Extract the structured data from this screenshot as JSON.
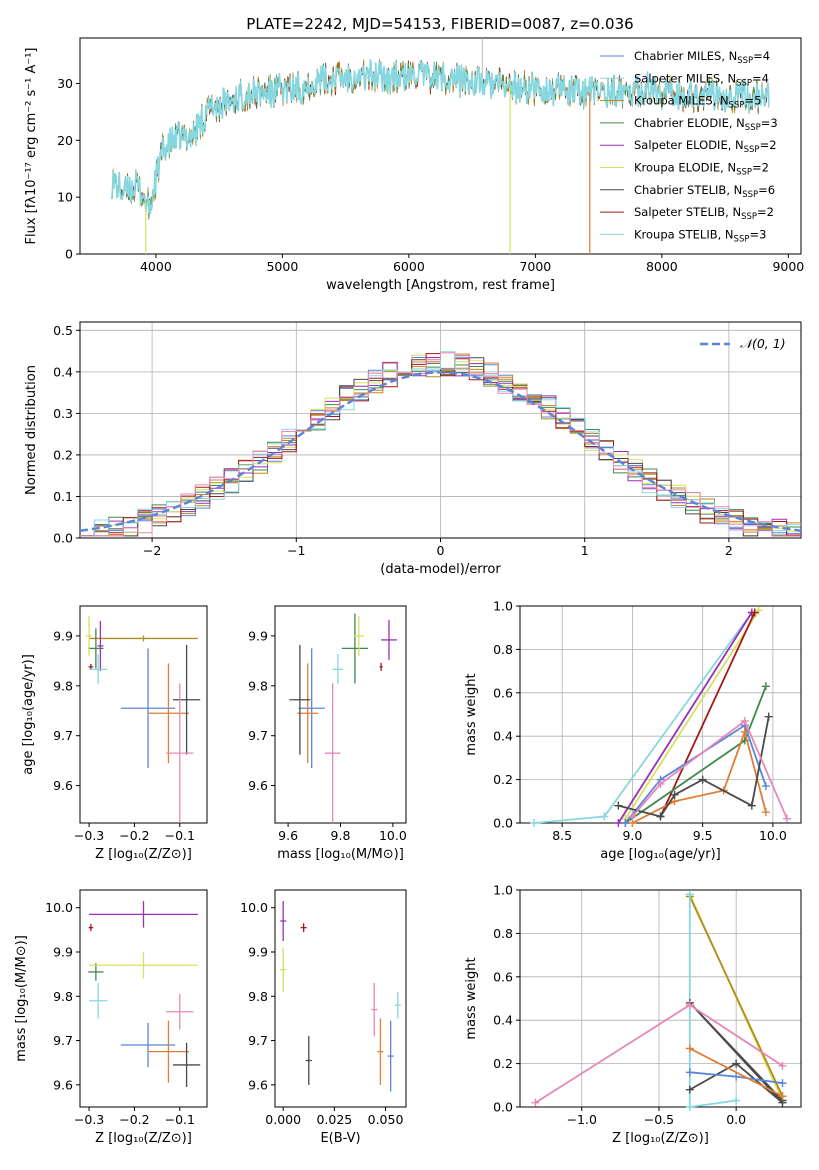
{
  "title": "PLATE=2242, MJD=54153, FIBERID=0087, z=0.036",
  "colors": {
    "Chabrier MILES": "#5b86d8",
    "Salpeter MILES": "#e07d36",
    "Kroupa MILES": "#b58a1e",
    "Chabrier ELODIE": "#3f8a4a",
    "Salpeter ELODIE": "#9b2fb5",
    "Kroupa ELODIE": "#d7e060",
    "Chabrier STELIB": "#4a4a4a",
    "Salpeter STELIB": "#a11a1a",
    "Kroupa STELIB": "#86d7e0",
    "pink": "#e887b7",
    "gauss": "#5b86d8"
  },
  "chart_data": [
    {
      "id": "spectrum",
      "type": "line",
      "xlabel": "wavelength [Angstrom, rest frame]",
      "ylabel": "Flux [fλ10⁻¹⁷ erg cm⁻² s⁻¹ A⁻¹]",
      "xlim": [
        3400,
        9100
      ],
      "ylim": [
        0,
        38
      ],
      "xticks": [
        4000,
        5000,
        6000,
        7000,
        8000,
        9000
      ],
      "yticks": [
        0,
        10,
        20,
        30
      ],
      "grid": false,
      "legend_position": "top-right",
      "legend": [
        {
          "label": "Chabrier MILES, N",
          "sub": "SSP",
          "val": "=4",
          "color_key": "Chabrier MILES"
        },
        {
          "label": "Salpeter MILES, N",
          "sub": "SSP",
          "val": "=4",
          "color_key": "Kroupa STELIB"
        },
        {
          "label": "Kroupa MILES, N",
          "sub": "SSP",
          "val": "=5",
          "color_key": "Kroupa MILES"
        },
        {
          "label": "Chabrier ELODIE, N",
          "sub": "SSP",
          "val": "=3",
          "color_key": "Chabrier ELODIE"
        },
        {
          "label": "Salpeter ELODIE, N",
          "sub": "SSP",
          "val": "=2",
          "color_key": "Salpeter ELODIE"
        },
        {
          "label": "Kroupa ELODIE, N",
          "sub": "SSP",
          "val": "=2",
          "color_key": "Kroupa ELODIE"
        },
        {
          "label": "Chabrier STELIB, N",
          "sub": "SSP",
          "val": "=6",
          "color_key": "Chabrier STELIB"
        },
        {
          "label": "Salpeter STELIB, N",
          "sub": "SSP",
          "val": "=2",
          "color_key": "Salpeter STELIB"
        },
        {
          "label": "Kroupa STELIB, N",
          "sub": "SSP",
          "val": "=3",
          "color_key": "Kroupa STELIB"
        }
      ],
      "continuum": [
        [
          3650,
          13
        ],
        [
          3750,
          11
        ],
        [
          3850,
          12
        ],
        [
          3950,
          8
        ],
        [
          4050,
          18
        ],
        [
          4150,
          20
        ],
        [
          4300,
          21
        ],
        [
          4400,
          25
        ],
        [
          4500,
          26
        ],
        [
          4700,
          28
        ],
        [
          4900,
          28.5
        ],
        [
          5100,
          29
        ],
        [
          5300,
          30.5
        ],
        [
          5600,
          31.5
        ],
        [
          5900,
          31
        ],
        [
          6100,
          31.5
        ],
        [
          6300,
          31
        ],
        [
          6600,
          30
        ],
        [
          6800,
          29.5
        ],
        [
          7000,
          29
        ],
        [
          7300,
          28.5
        ],
        [
          7600,
          28.5
        ],
        [
          7900,
          29
        ],
        [
          8200,
          28
        ],
        [
          8500,
          28
        ],
        [
          8800,
          27.5
        ]
      ],
      "dropouts": [
        {
          "x": 3920,
          "color_key": "Kroupa ELODIE"
        },
        {
          "x": 6800,
          "color_key": "Kroupa ELODIE"
        },
        {
          "x": 7430,
          "color_key": "Salpeter MILES"
        }
      ]
    },
    {
      "id": "residuals",
      "type": "histogram",
      "xlabel": "(data-model)/error",
      "ylabel": "Normed distribution",
      "xlim": [
        -2.5,
        2.5
      ],
      "ylim": [
        0,
        0.52
      ],
      "xticks": [
        -2,
        -1,
        0,
        1,
        2
      ],
      "yticks": [
        0.0,
        0.1,
        0.2,
        0.3,
        0.4,
        0.5
      ],
      "grid": true,
      "legend_position": "top-right",
      "legend": [
        {
          "label": "𝒩(0, 1)",
          "color_key": "gauss"
        }
      ],
      "bin_width": 0.1
    },
    {
      "id": "age_vs_Z",
      "type": "errorbar",
      "xlabel": "Z [log₁₀(Z/Z⊙)]",
      "ylabel": "age  [log₁₀(age/yr)]",
      "xlim": [
        -0.32,
        -0.04
      ],
      "ylim": [
        9.525,
        9.96
      ],
      "xticks": [
        -0.3,
        -0.2,
        -0.1
      ],
      "yticks": [
        9.6,
        9.7,
        9.8,
        9.9
      ],
      "points": [
        {
          "c": "Chabrier MILES",
          "x": -0.17,
          "xe": 0.06,
          "y": 9.755,
          "ye": 0.12
        },
        {
          "c": "Salpeter MILES",
          "x": -0.125,
          "xe": 0.045,
          "y": 9.745,
          "ye": 0.1
        },
        {
          "c": "Kroupa MILES",
          "x": -0.18,
          "xe": 0.12,
          "y": 9.895,
          "ye": 0.0
        },
        {
          "c": "Chabrier ELODIE",
          "x": -0.285,
          "xe": 0.017,
          "y": 9.875,
          "ye": 0.04
        },
        {
          "c": "Salpeter ELODIE",
          "x": -0.275,
          "xe": 0.0,
          "y": 9.88,
          "ye": 0.05
        },
        {
          "c": "Kroupa ELODIE",
          "x": -0.3,
          "xe": 0.0,
          "y": 9.9,
          "ye": 0.04
        },
        {
          "c": "Chabrier STELIB",
          "x": -0.085,
          "xe": 0.03,
          "y": 9.772,
          "ye": 0.11
        },
        {
          "c": "Salpeter STELIB",
          "x": -0.296,
          "xe": 0.005,
          "y": 9.838,
          "ye": 0.0
        },
        {
          "c": "Kroupa STELIB",
          "x": -0.28,
          "xe": 0.02,
          "y": 9.833,
          "ye": 0.03
        },
        {
          "c": "pink",
          "x": -0.1,
          "xe": 0.03,
          "y": 9.665,
          "ye": 0.14
        }
      ]
    },
    {
      "id": "age_vs_mass",
      "type": "errorbar",
      "xlabel": "mass [log₁₀(M/M⊙)]",
      "ylabel": "",
      "xlim": [
        9.55,
        10.05
      ],
      "ylim": [
        9.525,
        9.96
      ],
      "xticks": [
        9.6,
        9.8,
        10.0
      ],
      "yticks": [
        9.6,
        9.7,
        9.8,
        9.9
      ],
      "points": [
        {
          "c": "Chabrier MILES",
          "x": 9.69,
          "xe": 0.05,
          "y": 9.755,
          "ye": 0.12
        },
        {
          "c": "Salpeter MILES",
          "x": 9.675,
          "xe": 0.04,
          "y": 9.745,
          "ye": 0.1
        },
        {
          "c": "Chabrier ELODIE",
          "x": 9.855,
          "xe": 0.05,
          "y": 9.875,
          "ye": 0.07
        },
        {
          "c": "Salpeter ELODIE",
          "x": 9.985,
          "xe": 0.03,
          "y": 9.892,
          "ye": 0.04
        },
        {
          "c": "Kroupa ELODIE",
          "x": 9.87,
          "xe": 0.02,
          "y": 9.9,
          "ye": 0.04
        },
        {
          "c": "Chabrier STELIB",
          "x": 9.645,
          "xe": 0.04,
          "y": 9.772,
          "ye": 0.11
        },
        {
          "c": "Salpeter STELIB",
          "x": 9.955,
          "xe": 0.006,
          "y": 9.838,
          "ye": 0.008
        },
        {
          "c": "Kroupa STELIB",
          "x": 9.79,
          "xe": 0.02,
          "y": 9.833,
          "ye": 0.03
        },
        {
          "c": "pink",
          "x": 9.77,
          "xe": 0.03,
          "y": 9.665,
          "ye": 0.14
        }
      ]
    },
    {
      "id": "massweight_vs_age",
      "type": "line",
      "xlabel": "age  [log₁₀(age/yr)]",
      "ylabel": "mass weight",
      "xlim": [
        8.2,
        10.2
      ],
      "ylim": [
        0,
        1.0
      ],
      "xticks": [
        8.5,
        9.0,
        9.5,
        10.0
      ],
      "yticks": [
        0.0,
        0.2,
        0.4,
        0.6,
        0.8,
        1.0
      ],
      "grid": true,
      "series": [
        {
          "c": "Kroupa STELIB",
          "x": [
            8.3,
            8.8,
            9.85
          ],
          "y": [
            0.0,
            0.03,
            0.97
          ]
        },
        {
          "c": "Kroupa ELODIE",
          "x": [
            8.95,
            9.9
          ],
          "y": [
            0.02,
            0.98
          ]
        },
        {
          "c": "Salpeter ELODIE",
          "x": [
            8.9,
            9.85
          ],
          "y": [
            0.0,
            0.97
          ]
        },
        {
          "c": "Salpeter STELIB",
          "x": [
            9.2,
            9.87
          ],
          "y": [
            0.03,
            0.97
          ]
        },
        {
          "c": "Chabrier ELODIE",
          "x": [
            8.95,
            9.8,
            9.95
          ],
          "y": [
            0.0,
            0.38,
            0.63
          ]
        },
        {
          "c": "Chabrier MILES",
          "x": [
            8.95,
            9.2,
            9.8,
            9.95
          ],
          "y": [
            0.0,
            0.2,
            0.45,
            0.17
          ]
        },
        {
          "c": "Salpeter MILES",
          "x": [
            9.0,
            9.3,
            9.65,
            9.8,
            9.95
          ],
          "y": [
            0.0,
            0.1,
            0.15,
            0.42,
            0.05
          ]
        },
        {
          "c": "Chabrier STELIB",
          "x": [
            8.9,
            9.2,
            9.3,
            9.5,
            9.85,
            9.97
          ],
          "y": [
            0.08,
            0.03,
            0.13,
            0.2,
            0.08,
            0.49
          ]
        },
        {
          "c": "pink",
          "x": [
            9.0,
            9.2,
            9.8,
            10.1
          ],
          "y": [
            0.03,
            0.18,
            0.47,
            0.02
          ]
        }
      ]
    },
    {
      "id": "mass_vs_Z",
      "type": "errorbar",
      "xlabel": "Z [log₁₀(Z/Z⊙)]",
      "ylabel": "mass [log₁₀(M/M⊙)]",
      "xlim": [
        -0.32,
        -0.04
      ],
      "ylim": [
        9.55,
        10.04
      ],
      "xticks": [
        -0.3,
        -0.2,
        -0.1
      ],
      "yticks": [
        9.6,
        9.7,
        9.8,
        9.9,
        10.0
      ],
      "points": [
        {
          "c": "Chabrier MILES",
          "x": -0.17,
          "xe": 0.06,
          "y": 9.69,
          "ye": 0.05
        },
        {
          "c": "Salpeter MILES",
          "x": -0.125,
          "xe": 0.045,
          "y": 9.675,
          "ye": 0.07
        },
        {
          "c": "Chabrier ELODIE",
          "x": -0.285,
          "xe": 0.017,
          "y": 9.855,
          "ye": 0.02
        },
        {
          "c": "Salpeter ELODIE",
          "x": -0.18,
          "xe": 0.12,
          "y": 9.985,
          "ye": 0.03
        },
        {
          "c": "Kroupa ELODIE",
          "x": -0.18,
          "xe": 0.12,
          "y": 9.87,
          "ye": 0.03
        },
        {
          "c": "Chabrier STELIB",
          "x": -0.085,
          "xe": 0.03,
          "y": 9.645,
          "ye": 0.05
        },
        {
          "c": "Salpeter STELIB",
          "x": -0.296,
          "xe": 0.005,
          "y": 9.955,
          "ye": 0.008
        },
        {
          "c": "Kroupa STELIB",
          "x": -0.28,
          "xe": 0.02,
          "y": 9.79,
          "ye": 0.04
        },
        {
          "c": "pink",
          "x": -0.1,
          "xe": 0.03,
          "y": 9.765,
          "ye": 0.04
        }
      ]
    },
    {
      "id": "mass_vs_ebv",
      "type": "errorbar",
      "xlabel": "E(B-V)",
      "ylabel": "",
      "xlim": [
        -0.004,
        0.06
      ],
      "ylim": [
        9.55,
        10.04
      ],
      "xticks": [
        0.0,
        0.025,
        0.05
      ],
      "xticklabels": [
        "0.000",
        "0.025",
        "0.050"
      ],
      "yticks": [
        9.6,
        9.7,
        9.8,
        9.9,
        10.0
      ],
      "points": [
        {
          "c": "Salpeter ELODIE",
          "x": 0.0,
          "xe": 0.0,
          "y": 9.97,
          "ye": 0.045
        },
        {
          "c": "Kroupa ELODIE",
          "x": 0.0,
          "xe": 0.0,
          "y": 9.86,
          "ye": 0.05
        },
        {
          "c": "Salpeter STELIB",
          "x": 0.01,
          "xe": 0.0,
          "y": 9.955,
          "ye": 0.01
        },
        {
          "c": "Chabrier STELIB",
          "x": 0.0125,
          "xe": 0.0,
          "y": 9.655,
          "ye": 0.055
        },
        {
          "c": "pink",
          "x": 0.0445,
          "xe": 0.0,
          "y": 9.77,
          "ye": 0.06
        },
        {
          "c": "Salpeter MILES",
          "x": 0.0475,
          "xe": 0.0,
          "y": 9.675,
          "ye": 0.075
        },
        {
          "c": "Chabrier MILES",
          "x": 0.0525,
          "xe": 0.0,
          "y": 9.665,
          "ye": 0.08
        },
        {
          "c": "Kroupa STELIB",
          "x": 0.056,
          "xe": 0.0,
          "y": 9.78,
          "ye": 0.03
        }
      ]
    },
    {
      "id": "massweight_vs_Z",
      "type": "line",
      "xlabel": "Z [log₁₀(Z/Z⊙)]",
      "ylabel": "mass weight",
      "xlim": [
        -1.4,
        0.42
      ],
      "ylim": [
        0,
        1.0
      ],
      "xticks": [
        -1.0,
        -0.5,
        0.0
      ],
      "yticks": [
        0.0,
        0.2,
        0.4,
        0.6,
        0.8,
        1.0
      ],
      "grid": true,
      "series": [
        {
          "c": "Kroupa ELODIE",
          "x": [
            -0.3,
            0.3
          ],
          "y": [
            0.98,
            0.03
          ]
        },
        {
          "c": "Kroupa MILES",
          "x": [
            -0.3,
            0.3
          ],
          "y": [
            0.97,
            0.05
          ]
        },
        {
          "c": "Kroupa STELIB",
          "x": [
            -0.3,
            -0.3,
            0.0
          ],
          "y": [
            0.98,
            0.0,
            0.03
          ]
        },
        {
          "c": "Chabrier STELIB",
          "x": [
            -0.3,
            0.0,
            0.3,
            -0.3,
            0.3
          ],
          "y": [
            0.08,
            0.2,
            0.02,
            0.48,
            0.03
          ]
        },
        {
          "c": "Chabrier MILES",
          "x": [
            -0.3,
            0.0,
            0.3
          ],
          "y": [
            0.16,
            0.14,
            0.11
          ]
        },
        {
          "c": "Salpeter MILES",
          "x": [
            -0.3,
            0.3
          ],
          "y": [
            0.27,
            0.05
          ]
        },
        {
          "c": "pink",
          "x": [
            -1.3,
            -0.3,
            0.3
          ],
          "y": [
            0.02,
            0.47,
            0.19
          ]
        }
      ]
    }
  ]
}
